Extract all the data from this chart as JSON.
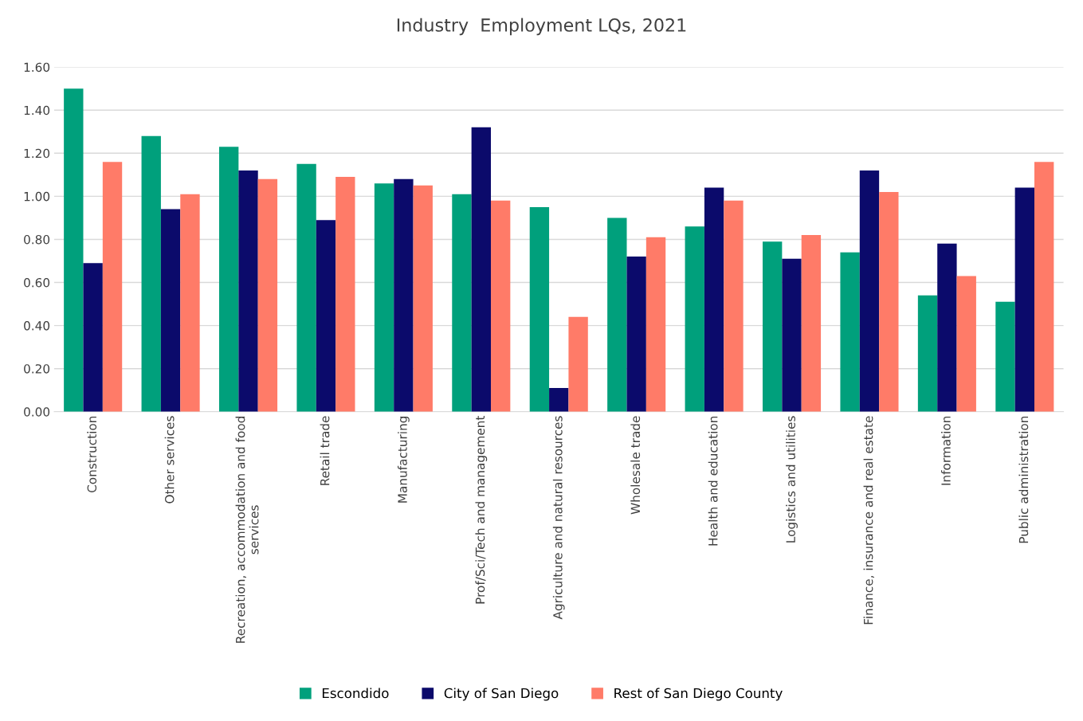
{
  "chart_data": {
    "type": "bar",
    "title": "Industry  Employment LQs, 2021",
    "categories": [
      "Construction",
      "Other services",
      "Recreation, accommodation and food\nservices",
      "Retail trade",
      "Manufacturing",
      "Prof/Sci/Tech and management",
      "Agriculture and natural resources",
      "Wholesale trade",
      "Health and education",
      "Logistics and utilities",
      "Finance, insurance and real estate",
      "Information",
      "Public administration"
    ],
    "series": [
      {
        "name": "Escondido",
        "color": "#00a07c",
        "values": [
          1.5,
          1.28,
          1.23,
          1.15,
          1.06,
          1.01,
          0.95,
          0.9,
          0.86,
          0.79,
          0.74,
          0.54,
          0.51
        ]
      },
      {
        "name": "City of San Diego",
        "color": "#0b0a6b",
        "values": [
          0.69,
          0.94,
          1.12,
          0.89,
          1.08,
          1.32,
          0.11,
          0.72,
          1.04,
          0.71,
          1.12,
          0.78,
          1.04
        ]
      },
      {
        "name": "Rest of San Diego County",
        "color": "#ff7b68",
        "values": [
          1.16,
          1.01,
          1.08,
          1.09,
          1.05,
          0.98,
          0.44,
          0.81,
          0.98,
          0.82,
          1.02,
          0.63,
          1.16
        ]
      }
    ],
    "ylim": [
      0,
      1.6
    ],
    "yticks": [
      {
        "value": 0,
        "label": "0.00"
      },
      {
        "value": 0.2,
        "label": "0.20"
      },
      {
        "value": 0.4,
        "label": "0.40"
      },
      {
        "value": 0.6,
        "label": "0.60"
      },
      {
        "value": 0.8,
        "label": "0.80"
      },
      {
        "value": 1.0,
        "label": "1.00"
      },
      {
        "value": 1.2,
        "label": "1.20"
      },
      {
        "value": 1.4,
        "label": "1.40"
      },
      {
        "value": 1.6,
        "label": "1.60"
      }
    ],
    "grid": "y",
    "legend": "bottom"
  }
}
